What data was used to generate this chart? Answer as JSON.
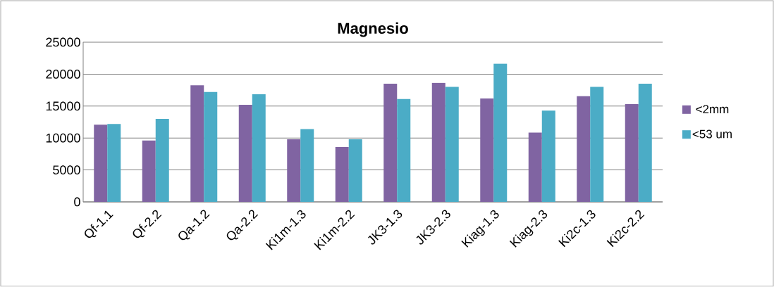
{
  "chart_data": {
    "type": "bar",
    "title": "Magnesio",
    "categories": [
      "Qf-1.1",
      "Qf-2.2",
      "Qa-1.2",
      "Qa-2.2",
      "Ki1m-1.3",
      "Ki1m-2.2",
      "JK3-1.3",
      "JK3-2.3",
      "Kiag-1.3",
      "Kiag-2.3",
      "Ki2c-1.3",
      "Ki2c-2.2"
    ],
    "series": [
      {
        "name": "<2mm",
        "color": "#8064a2",
        "values": [
          12100,
          9600,
          18250,
          15200,
          9800,
          8600,
          18500,
          18650,
          16200,
          10850,
          16550,
          15300
        ]
      },
      {
        "name": "<53 um",
        "color": "#4bacc6",
        "values": [
          12200,
          13000,
          17200,
          16850,
          11400,
          9800,
          16100,
          18000,
          21650,
          14300,
          18000,
          18500
        ]
      }
    ],
    "ylim": [
      0,
      25000
    ],
    "yticks": [
      0,
      5000,
      10000,
      15000,
      20000,
      25000
    ],
    "grid": "y",
    "legend": "right"
  }
}
